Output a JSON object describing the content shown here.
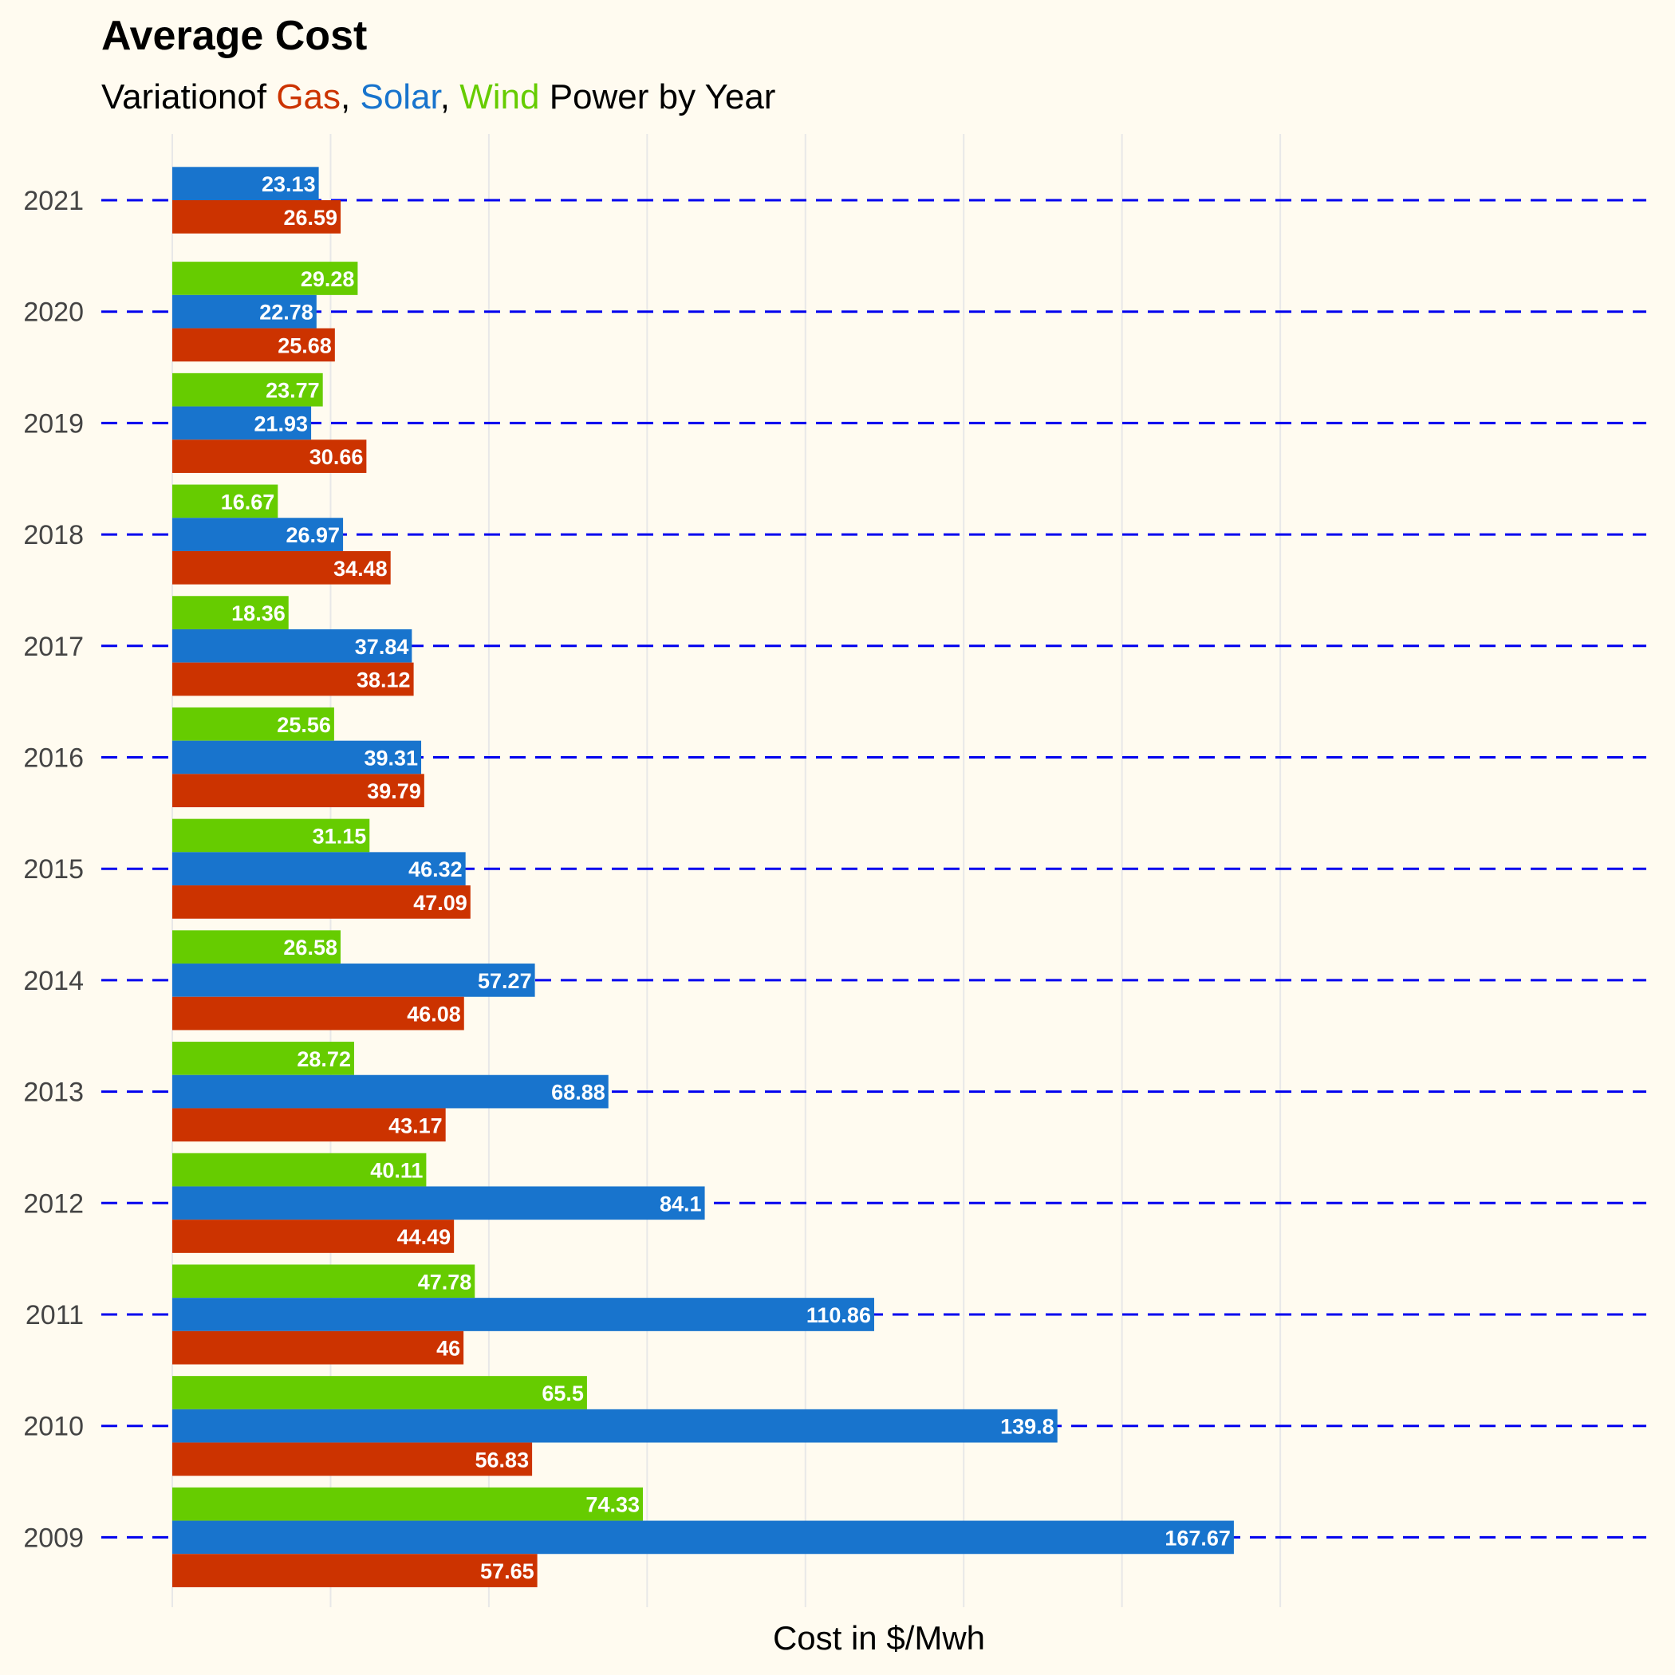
{
  "chart_data": {
    "type": "bar",
    "orientation": "horizontal",
    "title": "Average Cost",
    "subtitle": {
      "parts": [
        {
          "text": "Variation",
          "color": "#000000"
        },
        {
          "text": "of ",
          "color": "#000000"
        },
        {
          "text": "Gas",
          "color": "#cc3300"
        },
        {
          "text": ", ",
          "color": "#000000"
        },
        {
          "text": "Solar",
          "color": "#1874cd"
        },
        {
          "text": ", ",
          "color": "#000000"
        },
        {
          "text": "Wind",
          "color": "#66cc00"
        },
        {
          "text": " Power by Year",
          "color": "#000000"
        }
      ]
    },
    "xlabel": "Cost in $/Mwh",
    "ylabel": "",
    "xlim": [
      0,
      175
    ],
    "categories": [
      "2021",
      "2020",
      "2019",
      "2018",
      "2017",
      "2016",
      "2015",
      "2014",
      "2013",
      "2012",
      "2011",
      "2010",
      "2009"
    ],
    "series": [
      {
        "name": "Wind",
        "color": "#66cc00",
        "values": [
          null,
          29.28,
          23.77,
          16.67,
          18.36,
          25.56,
          31.15,
          26.58,
          28.72,
          40.11,
          47.78,
          65.5,
          74.33
        ]
      },
      {
        "name": "Solar",
        "color": "#1874cd",
        "values": [
          23.13,
          22.78,
          21.93,
          26.97,
          37.84,
          39.31,
          46.32,
          57.27,
          68.88,
          84.1,
          110.86,
          139.8,
          167.67
        ]
      },
      {
        "name": "Gas",
        "color": "#cc3300",
        "values": [
          26.59,
          25.68,
          30.66,
          34.48,
          38.12,
          39.79,
          47.09,
          46.08,
          43.17,
          44.49,
          46,
          56.83,
          57.65
        ]
      }
    ],
    "data_labels": {
      "Wind": [
        "",
        "29.28",
        "23.77",
        "16.67",
        "18.36",
        "25.56",
        "31.15",
        "26.58",
        "28.72",
        "40.11",
        "47.78",
        "65.5",
        "74.33"
      ],
      "Solar": [
        "23.13",
        "22.78",
        "21.93",
        "26.97",
        "37.84",
        "39.31",
        "46.32",
        "57.27",
        "68.88",
        "84.1",
        "110.86",
        "139.8",
        "167.67"
      ],
      "Gas": [
        "26.59",
        "25.68",
        "30.66",
        "34.48",
        "38.12",
        "39.79",
        "47.09",
        "46.08",
        "43.17",
        "44.49",
        "46",
        "56.83",
        "57.65"
      ]
    },
    "grid": {
      "vertical": true,
      "horizontal": "dashed",
      "horizontal_color": "#0000ee"
    },
    "legend": "none"
  }
}
